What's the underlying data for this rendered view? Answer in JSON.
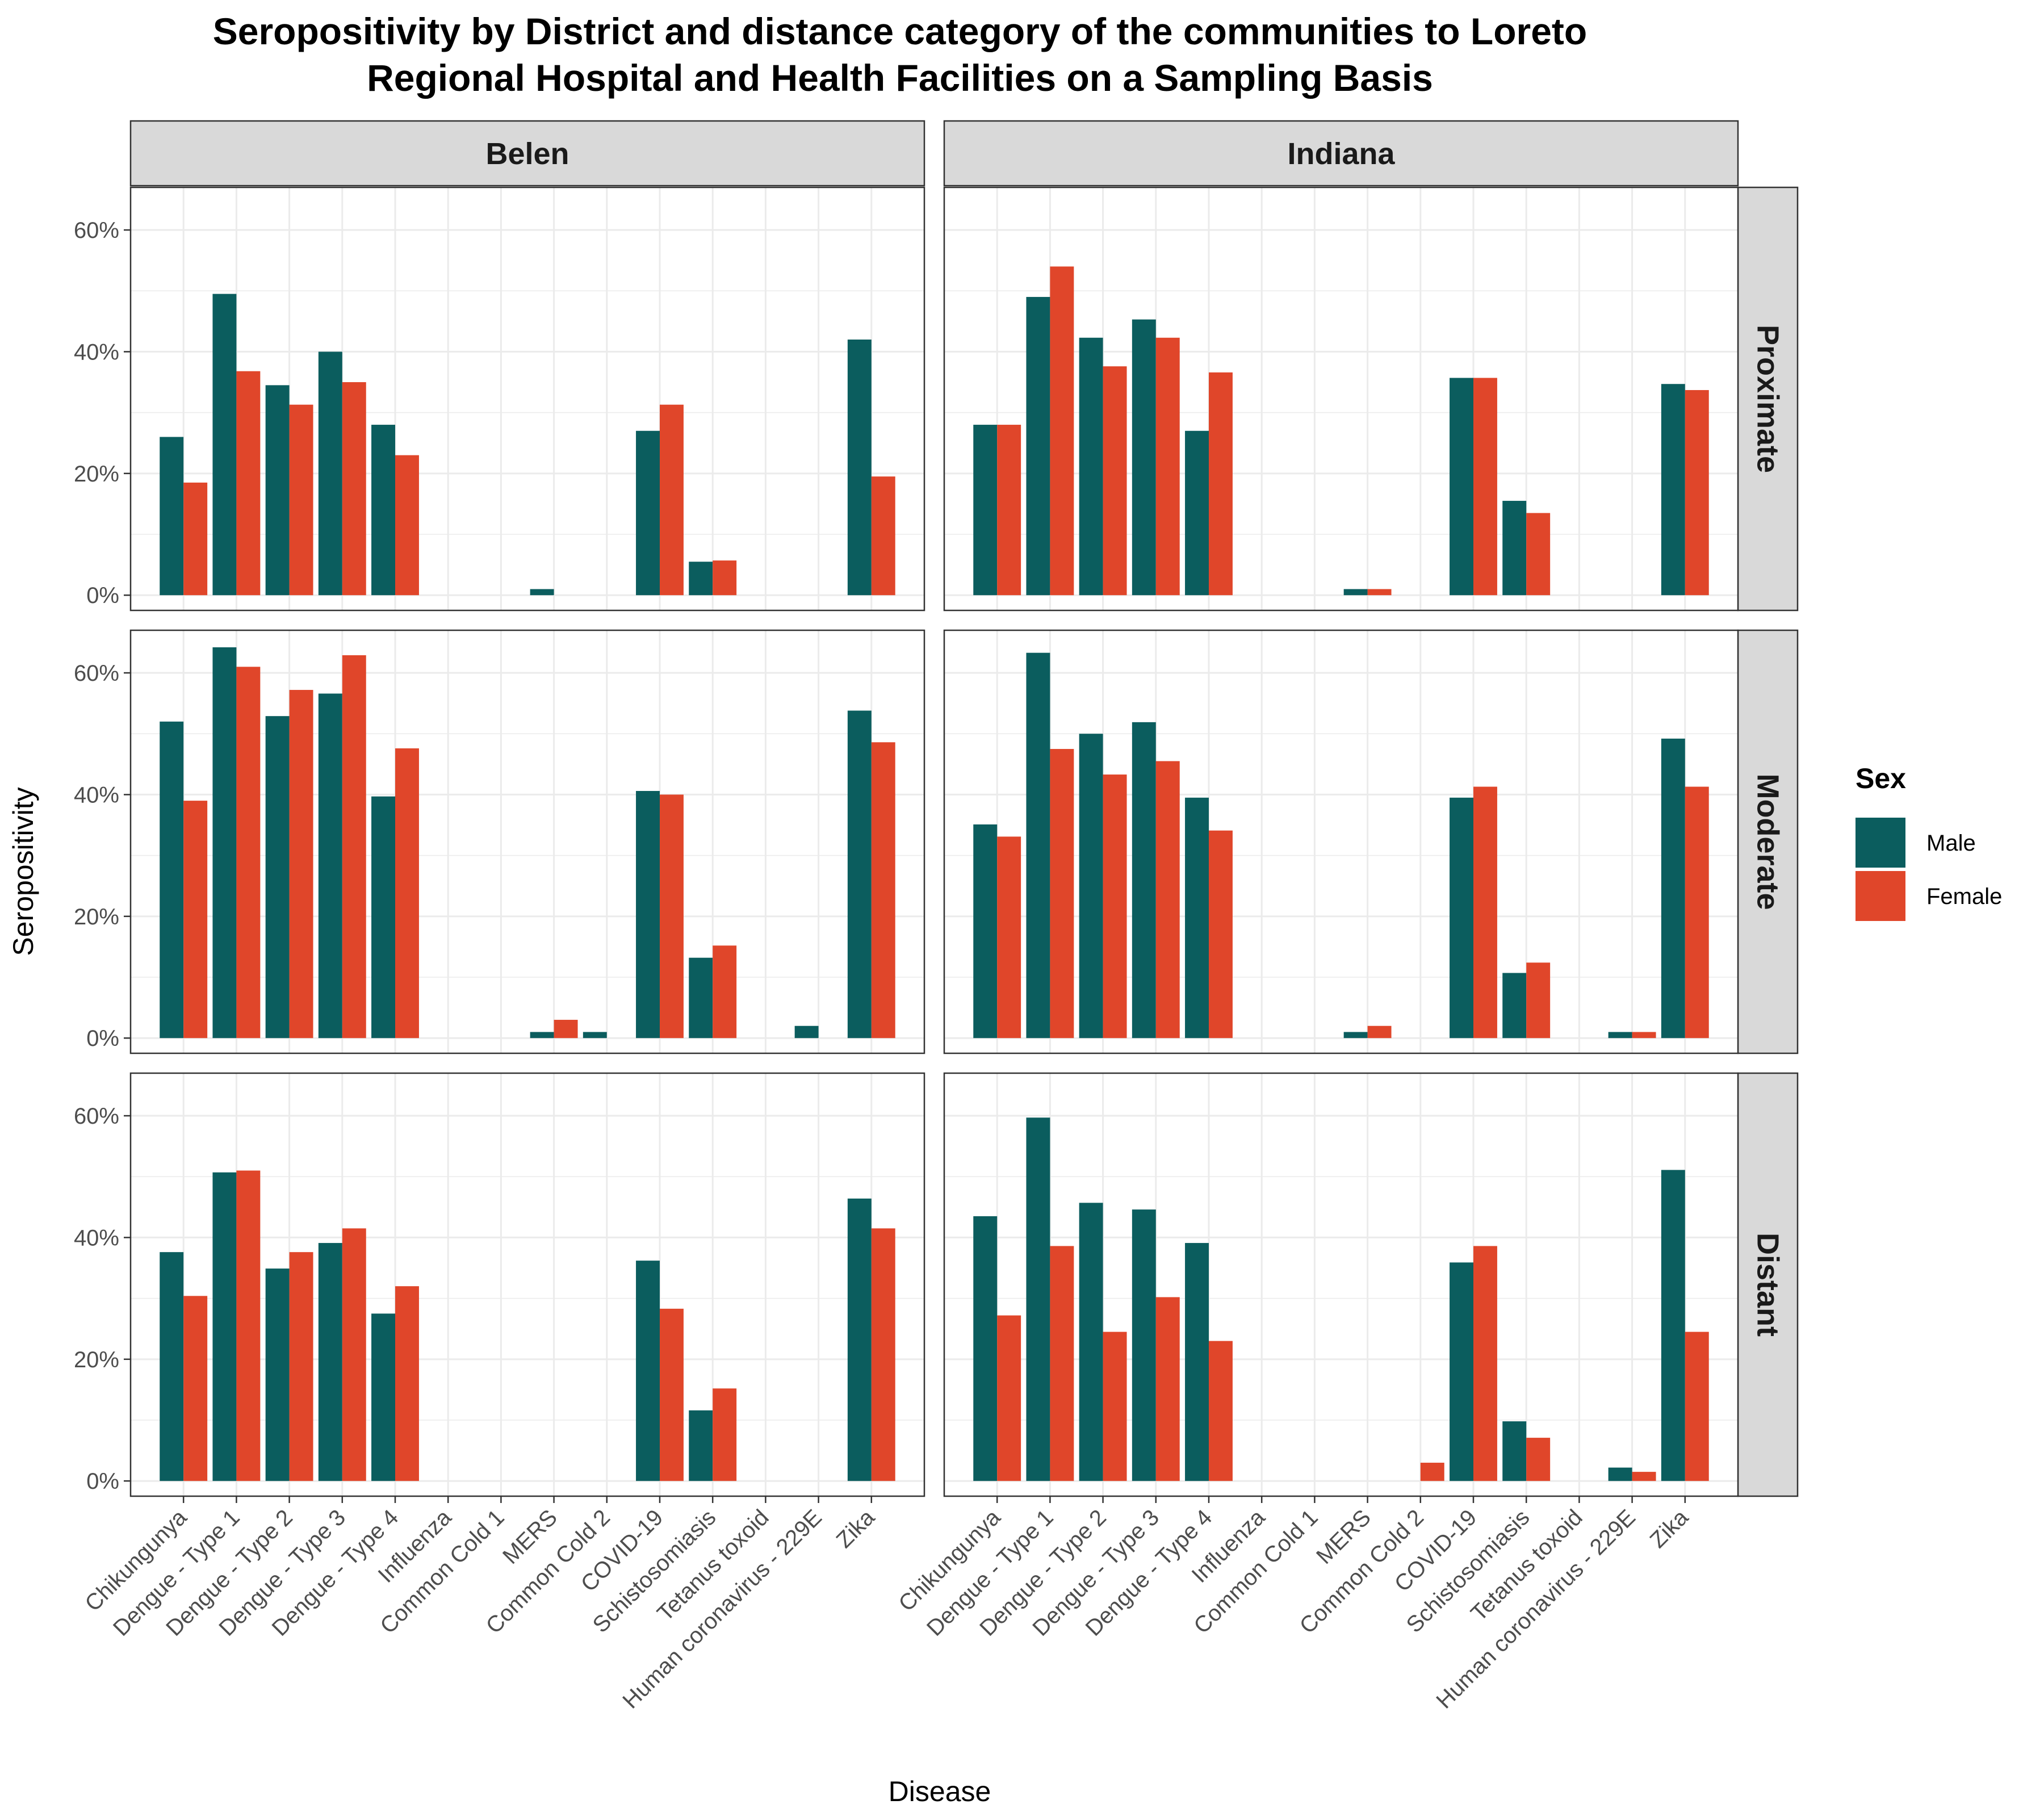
{
  "chart_data": {
    "type": "bar",
    "title_lines": [
      "Seropositivity by District and distance category of the communities to Loreto",
      "Regional Hospital and Health Facilities on a Sampling Basis"
    ],
    "xlabel": "Disease",
    "ylabel": "Seropositivity",
    "ylim": [
      0,
      0.67
    ],
    "y_ticks": [
      0,
      0.2,
      0.4,
      0.6
    ],
    "y_tick_labels": [
      "0%",
      "20%",
      "40%",
      "60%"
    ],
    "grid": true,
    "legend": {
      "title": "Sex",
      "placement": "right"
    },
    "colors": {
      "Male": "#0b5d5e",
      "Female": "#e0462a"
    },
    "facet_columns": [
      "Belen",
      "Indiana"
    ],
    "facet_rows": [
      "Proximate",
      "Moderate",
      "Distant"
    ],
    "categories": [
      "Chikungunya",
      "Dengue - Type 1",
      "Dengue - Type 2",
      "Dengue - Type 3",
      "Dengue - Type 4",
      "Influenza",
      "Common Cold 1",
      "MERS",
      "Common Cold 2",
      "COVID-19",
      "Schistosomiasis",
      "Tetanus toxoid",
      "Human coronavirus - 229E",
      "Zika"
    ],
    "series_names": [
      "Male",
      "Female"
    ],
    "panels": [
      {
        "column": "Belen",
        "row": "Proximate",
        "series": [
          {
            "name": "Male",
            "values": [
              0.26,
              0.495,
              0.345,
              0.4,
              0.28,
              0,
              0,
              0.01,
              0,
              0.27,
              0.055,
              0,
              0,
              0.42
            ]
          },
          {
            "name": "Female",
            "values": [
              0.185,
              0.368,
              0.313,
              0.35,
              0.23,
              0,
              0,
              0,
              0,
              0.313,
              0.057,
              0,
              0,
              0.195
            ]
          }
        ]
      },
      {
        "column": "Indiana",
        "row": "Proximate",
        "series": [
          {
            "name": "Male",
            "values": [
              0.28,
              0.49,
              0.423,
              0.453,
              0.27,
              0,
              0,
              0.01,
              0,
              0.357,
              0.155,
              0,
              0,
              0.347
            ]
          },
          {
            "name": "Female",
            "values": [
              0.28,
              0.54,
              0.376,
              0.423,
              0.366,
              0,
              0,
              0.01,
              0,
              0.357,
              0.135,
              0,
              0,
              0.337
            ]
          }
        ]
      },
      {
        "column": "Belen",
        "row": "Moderate",
        "series": [
          {
            "name": "Male",
            "values": [
              0.52,
              0.642,
              0.529,
              0.566,
              0.397,
              0,
              0,
              0.01,
              0.01,
              0.406,
              0.132,
              0,
              0.02,
              0.538
            ]
          },
          {
            "name": "Female",
            "values": [
              0.39,
              0.61,
              0.572,
              0.629,
              0.476,
              0,
              0,
              0.03,
              0,
              0.4,
              0.152,
              0,
              0,
              0.486
            ]
          }
        ]
      },
      {
        "column": "Indiana",
        "row": "Moderate",
        "series": [
          {
            "name": "Male",
            "values": [
              0.351,
              0.633,
              0.5,
              0.519,
              0.395,
              0,
              0,
              0.01,
              0,
              0.395,
              0.107,
              0,
              0.01,
              0.492
            ]
          },
          {
            "name": "Female",
            "values": [
              0.331,
              0.475,
              0.433,
              0.455,
              0.341,
              0,
              0,
              0.02,
              0,
              0.413,
              0.124,
              0,
              0.01,
              0.413
            ]
          }
        ]
      },
      {
        "column": "Belen",
        "row": "Distant",
        "series": [
          {
            "name": "Male",
            "values": [
              0.376,
              0.507,
              0.349,
              0.391,
              0.275,
              0,
              0,
              0,
              0,
              0.362,
              0.116,
              0,
              0,
              0.464
            ]
          },
          {
            "name": "Female",
            "values": [
              0.304,
              0.51,
              0.376,
              0.415,
              0.32,
              0,
              0,
              0,
              0,
              0.283,
              0.152,
              0,
              0,
              0.415
            ]
          }
        ]
      },
      {
        "column": "Indiana",
        "row": "Distant",
        "series": [
          {
            "name": "Male",
            "values": [
              0.435,
              0.597,
              0.457,
              0.446,
              0.391,
              0,
              0,
              0,
              0,
              0.359,
              0.098,
              0,
              0.022,
              0.511
            ]
          },
          {
            "name": "Female",
            "values": [
              0.272,
              0.386,
              0.245,
              0.302,
              0.23,
              0,
              0,
              0,
              0.03,
              0.386,
              0.071,
              0,
              0.015,
              0.245
            ]
          }
        ]
      }
    ]
  }
}
